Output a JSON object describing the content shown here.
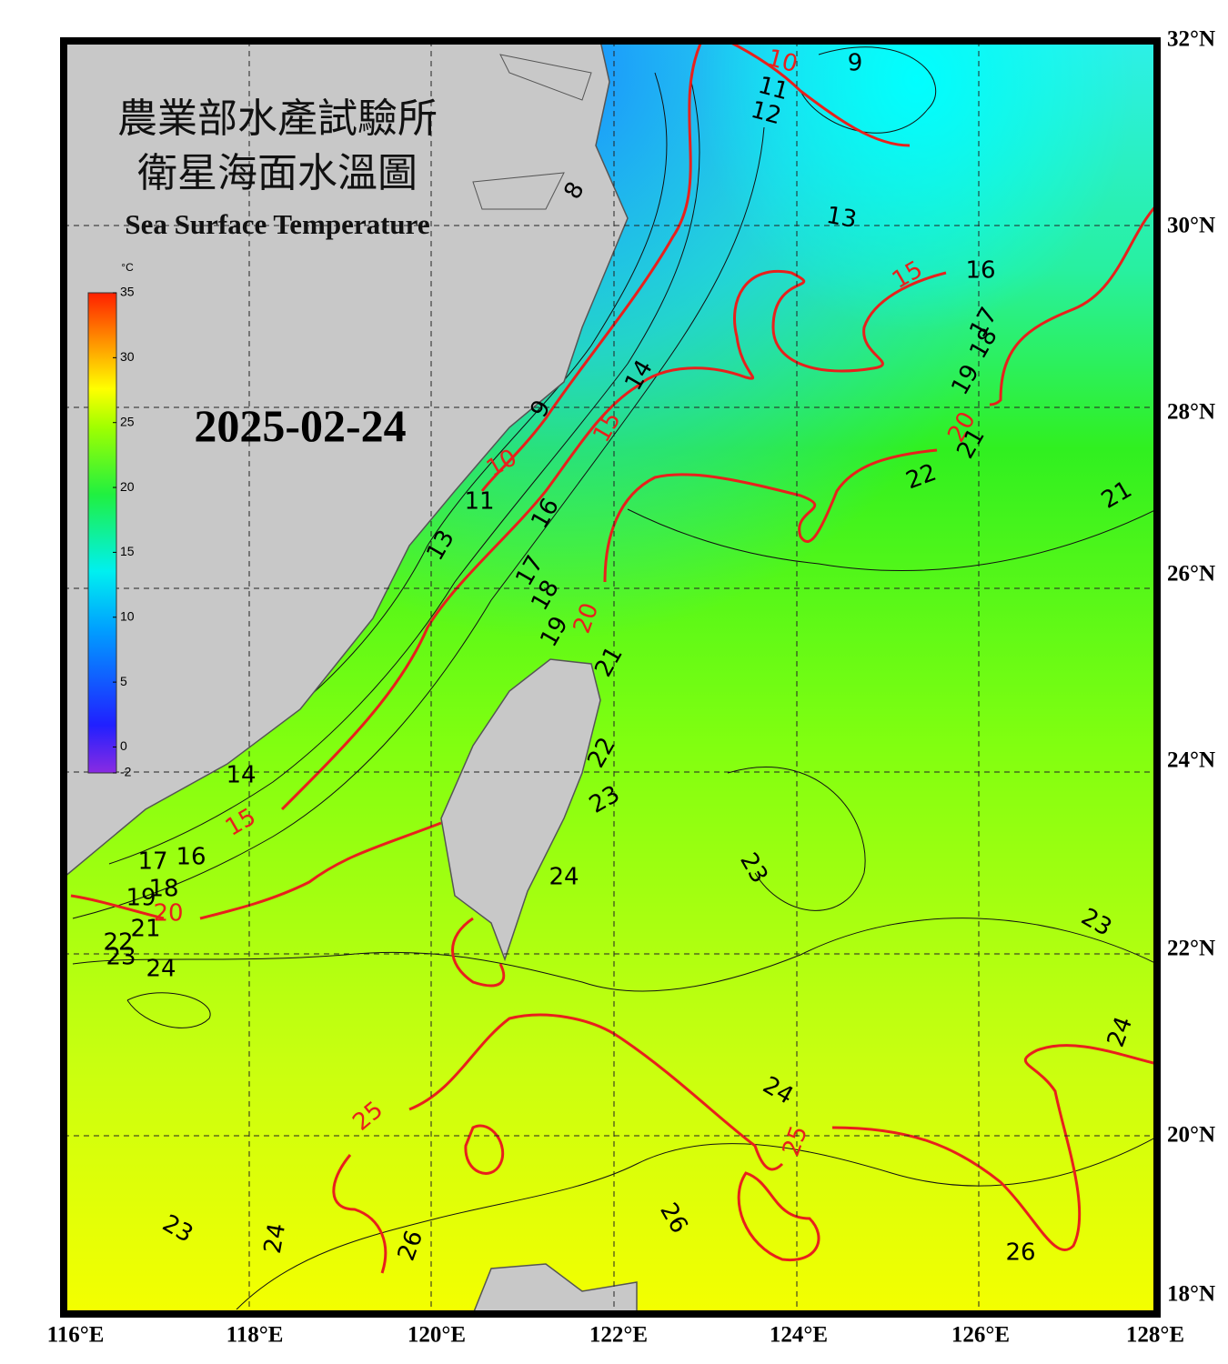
{
  "header": {
    "title": "農業部水產試驗所",
    "subtitle": "衛星海面水溫圖",
    "english_title": "Sea Surface Temperature",
    "date": "2025-02-24"
  },
  "colorbar": {
    "unit": "°C",
    "range": [
      -2,
      35
    ],
    "ticks": [
      -2,
      0,
      5,
      10,
      15,
      20,
      25,
      30,
      35
    ]
  },
  "axes": {
    "longitude_labels": [
      "116°E",
      "118°E",
      "120°E",
      "122°E",
      "124°E",
      "126°E",
      "128°E"
    ],
    "latitude_labels": [
      "32°N",
      "30°N",
      "28°N",
      "26°N",
      "24°N",
      "22°N",
      "20°N",
      "18°N"
    ]
  },
  "contour_labels": [
    10,
    9,
    11,
    12,
    13,
    15,
    16,
    17,
    18,
    19,
    20,
    21,
    22,
    21,
    8,
    9,
    14,
    15,
    10,
    11,
    16,
    13,
    17,
    18,
    19,
    20,
    21,
    22,
    23,
    24,
    23,
    23,
    24,
    24,
    25,
    26,
    26,
    26,
    24,
    23,
    25,
    15,
    14,
    16,
    17,
    18,
    19,
    20,
    21,
    22,
    23,
    24
  ]
}
